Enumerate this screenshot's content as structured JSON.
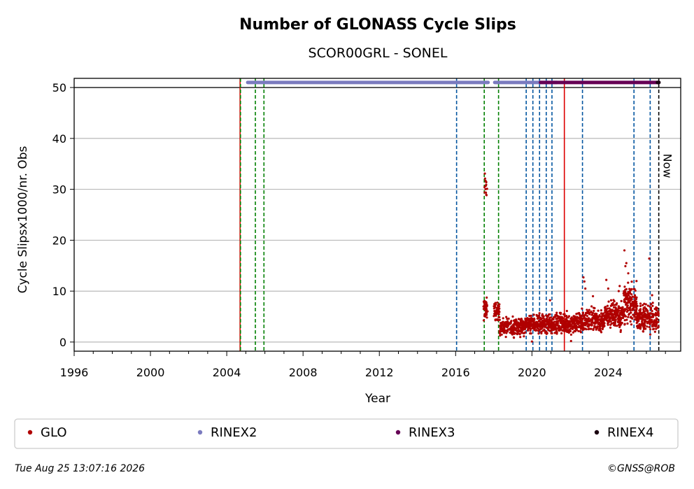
{
  "chart_data": {
    "type": "scatter",
    "title": "Number of GLONASS Cycle Slips",
    "subtitle": "SCOR00GRL - SONEL",
    "xlabel": "Year",
    "ylabel": "Cycle Slipsx1000/nr. Obs",
    "xlim": [
      1996,
      2027.8
    ],
    "ylim": [
      -1.8,
      51.8
    ],
    "x_ticks": [
      1996,
      2000,
      2004,
      2008,
      2012,
      2016,
      2020,
      2024
    ],
    "x_tick_labels": [
      "1996",
      "2000",
      "2004",
      "2008",
      "2012",
      "2016",
      "2020",
      "2024"
    ],
    "y_ticks": [
      0,
      10,
      20,
      30,
      40,
      50
    ],
    "y_tick_labels": [
      "0",
      "10",
      "20",
      "30",
      "40",
      "50"
    ],
    "grid": "horizontal",
    "colors": {
      "glo": "#b00000",
      "rinex2": "#7b7bbf",
      "rinex3": "#660055",
      "rinex4": "#1a0010",
      "event_green": "#008000",
      "event_blue": "#0055a0",
      "event_red": "#dd0000",
      "now": "#000000"
    },
    "now_label": "Now",
    "now_x": 2026.65,
    "event_lines": [
      {
        "x": 2004.7,
        "kind": "red"
      },
      {
        "x": 2004.72,
        "kind": "green"
      },
      {
        "x": 2005.5,
        "kind": "green"
      },
      {
        "x": 2005.95,
        "kind": "green"
      },
      {
        "x": 2016.05,
        "kind": "blue"
      },
      {
        "x": 2017.5,
        "kind": "green"
      },
      {
        "x": 2018.25,
        "kind": "green"
      },
      {
        "x": 2019.7,
        "kind": "blue"
      },
      {
        "x": 2020.05,
        "kind": "blue"
      },
      {
        "x": 2020.4,
        "kind": "blue"
      },
      {
        "x": 2020.75,
        "kind": "blue"
      },
      {
        "x": 2021.05,
        "kind": "blue"
      },
      {
        "x": 2021.7,
        "kind": "red"
      },
      {
        "x": 2022.65,
        "kind": "blue"
      },
      {
        "x": 2025.35,
        "kind": "blue"
      },
      {
        "x": 2026.2,
        "kind": "blue"
      }
    ],
    "series": [
      {
        "name": "GLO",
        "kind": "scatter",
        "clusters": [
          {
            "x": [
              2017.5,
              2017.65
            ],
            "y": [
              26,
              34.5
            ],
            "n": 14
          },
          {
            "x": [
              2017.45,
              2017.7
            ],
            "y": [
              3.5,
              9.5
            ],
            "n": 40
          },
          {
            "x": [
              2018.0,
              2018.3
            ],
            "y": [
              3.5,
              8.5
            ],
            "n": 50
          },
          {
            "x": [
              2018.3,
              2019.7
            ],
            "y": [
              0.5,
              5.5
            ],
            "n": 260
          },
          {
            "x": [
              2019.7,
              2021.2
            ],
            "y": [
              1.0,
              6.0
            ],
            "n": 280
          },
          {
            "x": [
              2021.2,
              2022.4
            ],
            "y": [
              0.5,
              6.5
            ],
            "n": 230
          },
          {
            "x": [
              2022.4,
              2023.8
            ],
            "y": [
              1.0,
              7.5
            ],
            "n": 260
          },
          {
            "x": [
              2023.8,
              2024.8
            ],
            "y": [
              1.5,
              9.0
            ],
            "n": 200
          },
          {
            "x": [
              2024.8,
              2025.5
            ],
            "y": [
              2.0,
              13.0
            ],
            "n": 160
          },
          {
            "x": [
              2025.5,
              2026.65
            ],
            "y": [
              1.0,
              8.5
            ],
            "n": 220
          }
        ],
        "outliers": [
          {
            "x": 2020.95,
            "y": 8.2
          },
          {
            "x": 2022.7,
            "y": 12.7
          },
          {
            "x": 2022.75,
            "y": 11.9
          },
          {
            "x": 2022.8,
            "y": 10.5
          },
          {
            "x": 2023.2,
            "y": 9.0
          },
          {
            "x": 2023.9,
            "y": 12.2
          },
          {
            "x": 2024.0,
            "y": 10.5
          },
          {
            "x": 2024.15,
            "y": 8.2
          },
          {
            "x": 2024.55,
            "y": 10.0
          },
          {
            "x": 2024.6,
            "y": 11.0
          },
          {
            "x": 2024.85,
            "y": 18.0
          },
          {
            "x": 2024.95,
            "y": 15.5
          },
          {
            "x": 2024.9,
            "y": 14.9
          },
          {
            "x": 2025.05,
            "y": 13.5
          },
          {
            "x": 2026.15,
            "y": 16.4
          },
          {
            "x": 2026.3,
            "y": 9.2
          },
          {
            "x": 2020.0,
            "y": 0.1
          },
          {
            "x": 2022.05,
            "y": 0.2
          }
        ]
      },
      {
        "name": "RINEX2",
        "kind": "band",
        "y": 51,
        "segments": [
          [
            2005.1,
            2017.7
          ],
          [
            2018.05,
            2021.3
          ]
        ]
      },
      {
        "name": "RINEX3",
        "kind": "band",
        "y": 51,
        "segments": [
          [
            2020.45,
            2026.6
          ]
        ]
      },
      {
        "name": "RINEX4",
        "kind": "band",
        "y": 51,
        "segments": [
          [
            2026.58,
            2026.66
          ]
        ]
      }
    ],
    "legend": [
      "GLO",
      "RINEX2",
      "RINEX3",
      "RINEX4"
    ],
    "legend_placement": "bottom"
  },
  "footer": {
    "timestamp": "Tue Aug 25 13:07:16 2026",
    "credit": "©GNSS@ROB"
  }
}
